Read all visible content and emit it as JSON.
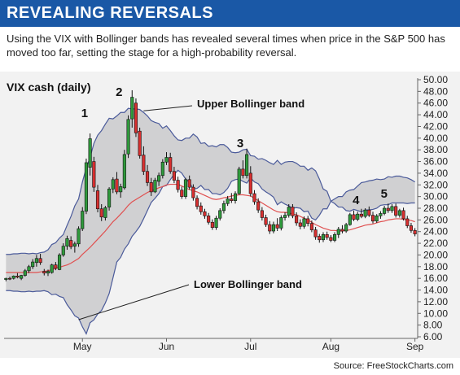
{
  "header": {
    "title": "REVEALING REVERSALS",
    "subtitle": "Using the VIX with Bollinger bands has revealed several times when price in the S&P 500 has moved too far, setting the stage for a high-probability reversal.",
    "source": "Source: FreeStockCharts.com"
  },
  "colors": {
    "banner": "#1a58a6",
    "band_fill": "#d0d0d2",
    "band_line": "#4a5a9a",
    "mid_line": "#e05050",
    "up_candle": "#2f9a3c",
    "down_candle": "#d83030",
    "background": "#f2f2f2"
  },
  "chart_data": {
    "type": "candlestick",
    "title": "VIX cash (daily)",
    "ylim": [
      6,
      50
    ],
    "y_ticks": [
      "6.00",
      "8.00",
      "10.00",
      "12.00",
      "14.00",
      "16.00",
      "18.00",
      "20.00",
      "22.00",
      "24.00",
      "26.00",
      "28.00",
      "30.00",
      "32.00",
      "34.00",
      "36.00",
      "38.00",
      "40.00",
      "42.00",
      "44.00",
      "46.00",
      "48.00",
      "50.00"
    ],
    "x_ticks": [
      {
        "label": "May",
        "day": 20
      },
      {
        "label": "Jun",
        "day": 42
      },
      {
        "label": "Jul",
        "day": 64
      },
      {
        "label": "Aug",
        "day": 85
      },
      {
        "label": "Sep",
        "day": 107
      }
    ],
    "day_count": 108,
    "series": [
      {
        "name": "Upper Bollinger band",
        "values": [
          20.1,
          20.1,
          20.2,
          20.2,
          20.3,
          20.3,
          20.2,
          20.3,
          20.2,
          20.4,
          20.5,
          20.9,
          21.8,
          22.1,
          22.9,
          23.5,
          25.1,
          26.6,
          28.4,
          29.6,
          32.5,
          34.9,
          36.7,
          39.1,
          40.5,
          41.3,
          42.4,
          43.4,
          43.3,
          43.8,
          44.4,
          44.4,
          45.1,
          45.0,
          45.0,
          44.9,
          44.4,
          43.8,
          43.0,
          42.7,
          42.5,
          41.7,
          42.1,
          41.3,
          40.4,
          39.7,
          39.6,
          40.0,
          40.0,
          40.7,
          40.2,
          39.1,
          39.2,
          38.6,
          38.7,
          38.5,
          38.9,
          38.9,
          38.4,
          37.6,
          37.5,
          37.6,
          38.0,
          38.1,
          37.0,
          36.9,
          36.4,
          36.5,
          36.2,
          35.8,
          35.5,
          36.2,
          35.5,
          35.9,
          36.0,
          36.0,
          35.7,
          35.2,
          35.2,
          34.5,
          34.9,
          34.4,
          33.0,
          31.3,
          30.9,
          29.2,
          28.8,
          28.2,
          28.2,
          27.6,
          27.5,
          27.8,
          27.6,
          27.4,
          27.7,
          27.7,
          27.8,
          28.0,
          28.5,
          28.6,
          28.6,
          28.9,
          28.9,
          28.9,
          28.9,
          28.8,
          28.9,
          28.9
        ]
      },
      {
        "name": "Middle band",
        "values": [
          17.0,
          17.0,
          17.0,
          17.0,
          17.0,
          17.0,
          17.0,
          17.0,
          17.0,
          17.1,
          17.2,
          17.3,
          17.5,
          17.7,
          17.9,
          18.1,
          18.3,
          18.6,
          19.0,
          19.4,
          20.1,
          20.7,
          21.3,
          22.0,
          22.7,
          23.4,
          24.1,
          24.9,
          25.7,
          26.3,
          27.0,
          27.7,
          28.5,
          29.1,
          29.5,
          29.9,
          30.3,
          30.7,
          31.0,
          31.2,
          31.5,
          31.7,
          32.0,
          32.1,
          32.1,
          32.1,
          31.8,
          31.5,
          31.2,
          31.0,
          30.8,
          30.5,
          30.2,
          29.9,
          29.6,
          29.5,
          29.6,
          29.8,
          29.9,
          30.1,
          30.2,
          30.3,
          30.3,
          30.2,
          30.1,
          29.7,
          29.3,
          28.9,
          28.5,
          28.1,
          27.7,
          27.4,
          27.3,
          27.3,
          27.2,
          27.0,
          26.9,
          26.6,
          26.3,
          26.0,
          25.6,
          25.2,
          24.9,
          24.6,
          24.4,
          24.2,
          24.2,
          24.1,
          24.1,
          24.2,
          24.3,
          24.5,
          24.7,
          24.9,
          25.1,
          25.2,
          25.3,
          25.5,
          25.7,
          25.8,
          26.0,
          26.1,
          26.2,
          26.2,
          26.1,
          26.0,
          25.9,
          25.7
        ]
      },
      {
        "name": "Lower Bollinger band",
        "values": [
          13.9,
          13.9,
          13.8,
          13.8,
          13.7,
          13.7,
          13.8,
          13.7,
          13.8,
          13.8,
          13.9,
          13.7,
          13.2,
          13.3,
          12.9,
          12.7,
          11.5,
          10.6,
          9.6,
          9.2,
          7.7,
          6.5,
          8.4,
          8.9,
          9.9,
          10.5,
          11.8,
          13.4,
          16.1,
          18.8,
          19.6,
          21.0,
          21.9,
          23.2,
          24.0,
          24.9,
          26.2,
          27.6,
          29.0,
          29.7,
          30.5,
          31.7,
          31.9,
          32.9,
          33.8,
          34.5,
          34.0,
          33.0,
          32.4,
          31.3,
          31.4,
          31.9,
          31.2,
          31.2,
          30.5,
          30.5,
          30.3,
          30.7,
          31.4,
          32.6,
          32.9,
          33.0,
          32.6,
          32.3,
          33.2,
          32.5,
          32.2,
          31.3,
          30.8,
          30.4,
          29.9,
          28.6,
          29.1,
          28.7,
          28.4,
          28.0,
          28.1,
          28.0,
          27.4,
          27.5,
          26.3,
          26.0,
          26.8,
          27.9,
          27.9,
          29.2,
          29.6,
          30.0,
          30.0,
          30.8,
          31.1,
          31.2,
          31.8,
          32.4,
          32.5,
          32.7,
          32.8,
          33.0,
          32.9,
          33.0,
          33.4,
          33.3,
          33.5,
          33.5,
          33.3,
          33.2,
          32.9,
          32.5
        ]
      }
    ],
    "candles": [
      [
        15.8,
        16.1,
        15.5,
        16.0
      ],
      [
        16.0,
        16.3,
        15.7,
        15.9
      ],
      [
        16.0,
        16.5,
        15.8,
        16.4
      ],
      [
        16.4,
        16.9,
        16.0,
        16.2
      ],
      [
        16.0,
        16.6,
        15.7,
        16.5
      ],
      [
        16.5,
        17.6,
        16.3,
        17.3
      ],
      [
        17.3,
        18.3,
        16.9,
        18.0
      ],
      [
        18.0,
        19.3,
        17.6,
        18.8
      ],
      [
        18.7,
        20.0,
        18.0,
        19.4
      ],
      [
        19.4,
        20.2,
        18.3,
        18.7
      ],
      [
        17.2,
        17.6,
        16.5,
        16.9
      ],
      [
        16.9,
        17.5,
        16.4,
        17.2
      ],
      [
        17.0,
        18.5,
        16.8,
        18.3
      ],
      [
        18.3,
        18.8,
        17.4,
        17.7
      ],
      [
        17.5,
        20.3,
        17.4,
        20.0
      ],
      [
        20.0,
        22.0,
        19.7,
        21.5
      ],
      [
        21.5,
        23.3,
        20.9,
        22.8
      ],
      [
        22.5,
        23.2,
        21.0,
        21.4
      ],
      [
        21.5,
        22.3,
        20.4,
        21.9
      ],
      [
        21.9,
        24.9,
        21.4,
        24.5
      ],
      [
        24.5,
        28.2,
        24.1,
        27.5
      ],
      [
        27.5,
        36.5,
        27.0,
        35.8
      ],
      [
        35.0,
        40.8,
        33.6,
        39.9
      ],
      [
        36.0,
        36.8,
        30.8,
        31.6
      ],
      [
        31.0,
        32.0,
        27.3,
        27.9
      ],
      [
        27.9,
        28.7,
        25.8,
        26.5
      ],
      [
        26.4,
        28.4,
        25.9,
        28.1
      ],
      [
        28.2,
        31.6,
        27.6,
        31.3
      ],
      [
        31.3,
        33.3,
        30.6,
        32.9
      ],
      [
        33.0,
        34.2,
        30.4,
        30.8
      ],
      [
        30.8,
        32.2,
        29.8,
        31.7
      ],
      [
        31.5,
        38.0,
        31.2,
        37.2
      ],
      [
        37.3,
        43.9,
        36.6,
        43.2
      ],
      [
        43.3,
        48.2,
        41.8,
        47.0
      ],
      [
        46.0,
        46.8,
        40.2,
        40.9
      ],
      [
        41.2,
        41.8,
        36.5,
        37.0
      ],
      [
        37.1,
        38.6,
        33.7,
        34.3
      ],
      [
        34.3,
        35.4,
        31.8,
        32.4
      ],
      [
        32.4,
        33.2,
        30.1,
        30.8
      ],
      [
        30.8,
        33.2,
        30.6,
        32.8
      ],
      [
        32.6,
        34.1,
        31.8,
        33.6
      ],
      [
        33.6,
        36.4,
        33.1,
        35.9
      ],
      [
        35.9,
        37.6,
        35.4,
        36.7
      ],
      [
        36.7,
        37.5,
        33.9,
        34.3
      ],
      [
        34.3,
        35.1,
        32.3,
        32.8
      ],
      [
        32.8,
        33.4,
        30.7,
        31.2
      ],
      [
        31.1,
        31.7,
        29.6,
        30.0
      ],
      [
        30.0,
        33.2,
        29.6,
        32.9
      ],
      [
        32.9,
        33.6,
        31.2,
        31.6
      ],
      [
        31.6,
        32.1,
        29.3,
        29.8
      ],
      [
        29.7,
        30.2,
        27.8,
        28.3
      ],
      [
        28.4,
        29.0,
        26.9,
        27.4
      ],
      [
        27.4,
        27.9,
        26.2,
        26.7
      ],
      [
        26.7,
        27.2,
        25.2,
        25.6
      ],
      [
        25.6,
        26.1,
        24.3,
        24.7
      ],
      [
        24.7,
        26.7,
        24.3,
        26.3
      ],
      [
        26.3,
        28.0,
        25.9,
        27.6
      ],
      [
        27.6,
        29.3,
        27.1,
        28.8
      ],
      [
        28.8,
        30.1,
        28.4,
        29.6
      ],
      [
        29.6,
        30.6,
        28.9,
        29.3
      ],
      [
        29.3,
        30.9,
        28.8,
        30.5
      ],
      [
        30.5,
        35.1,
        30.3,
        34.7
      ],
      [
        34.7,
        36.2,
        33.1,
        33.6
      ],
      [
        33.6,
        38.2,
        33.1,
        37.2
      ],
      [
        34.0,
        35.2,
        30.0,
        30.5
      ],
      [
        30.5,
        31.1,
        28.6,
        29.1
      ],
      [
        29.1,
        29.7,
        27.2,
        27.7
      ],
      [
        27.6,
        28.2,
        25.9,
        26.4
      ],
      [
        26.4,
        26.9,
        24.8,
        25.2
      ],
      [
        25.2,
        25.8,
        23.6,
        24.1
      ],
      [
        24.1,
        25.7,
        23.7,
        25.2
      ],
      [
        25.2,
        26.3,
        24.1,
        24.6
      ],
      [
        24.6,
        26.8,
        24.2,
        26.4
      ],
      [
        26.4,
        27.3,
        25.9,
        26.8
      ],
      [
        26.8,
        28.7,
        26.4,
        28.2
      ],
      [
        28.2,
        28.7,
        26.3,
        26.7
      ],
      [
        26.7,
        27.3,
        25.0,
        25.5
      ],
      [
        25.5,
        26.1,
        24.4,
        24.9
      ],
      [
        24.9,
        26.6,
        24.5,
        26.2
      ],
      [
        26.2,
        26.7,
        24.9,
        25.4
      ],
      [
        25.4,
        25.9,
        23.9,
        24.3
      ],
      [
        24.3,
        24.8,
        22.6,
        23.1
      ],
      [
        23.2,
        23.6,
        22.1,
        22.6
      ],
      [
        22.6,
        23.9,
        22.2,
        23.5
      ],
      [
        23.5,
        24.0,
        22.6,
        23.0
      ],
      [
        23.0,
        23.4,
        22.2,
        22.5
      ],
      [
        22.5,
        23.9,
        22.2,
        23.5
      ],
      [
        23.5,
        24.8,
        22.9,
        24.4
      ],
      [
        24.4,
        25.1,
        23.7,
        24.1
      ],
      [
        24.1,
        25.5,
        23.8,
        25.2
      ],
      [
        25.2,
        27.2,
        25.0,
        26.9
      ],
      [
        26.9,
        27.6,
        25.8,
        26.1
      ],
      [
        26.1,
        27.4,
        25.8,
        27.0
      ],
      [
        27.0,
        27.9,
        26.3,
        26.6
      ],
      [
        26.6,
        28.0,
        26.3,
        27.7
      ],
      [
        27.7,
        28.3,
        26.5,
        26.8
      ],
      [
        26.8,
        27.4,
        25.4,
        25.8
      ],
      [
        25.8,
        27.0,
        25.5,
        26.7
      ],
      [
        26.7,
        27.5,
        26.2,
        27.1
      ],
      [
        27.1,
        28.4,
        26.8,
        28.0
      ],
      [
        28.0,
        28.8,
        27.2,
        27.6
      ],
      [
        27.6,
        28.7,
        27.2,
        28.3
      ],
      [
        28.3,
        28.8,
        26.4,
        26.8
      ],
      [
        26.8,
        27.9,
        26.4,
        27.6
      ],
      [
        27.6,
        28.1,
        25.9,
        26.2
      ],
      [
        26.2,
        26.7,
        24.6,
        25.0
      ],
      [
        25.0,
        25.5,
        23.8,
        24.2
      ],
      [
        24.2,
        24.6,
        23.2,
        23.6
      ]
    ],
    "annotations": [
      {
        "text": "1",
        "day": 33
      },
      {
        "text": "2",
        "day": 33
      },
      {
        "text": "3",
        "day": 63
      },
      {
        "text": "4",
        "day": 92
      },
      {
        "text": "5",
        "day": 100
      },
      {
        "text": "Upper Bollinger band",
        "day": 31
      },
      {
        "text": "Lower Bollinger band",
        "day": 19
      }
    ]
  }
}
